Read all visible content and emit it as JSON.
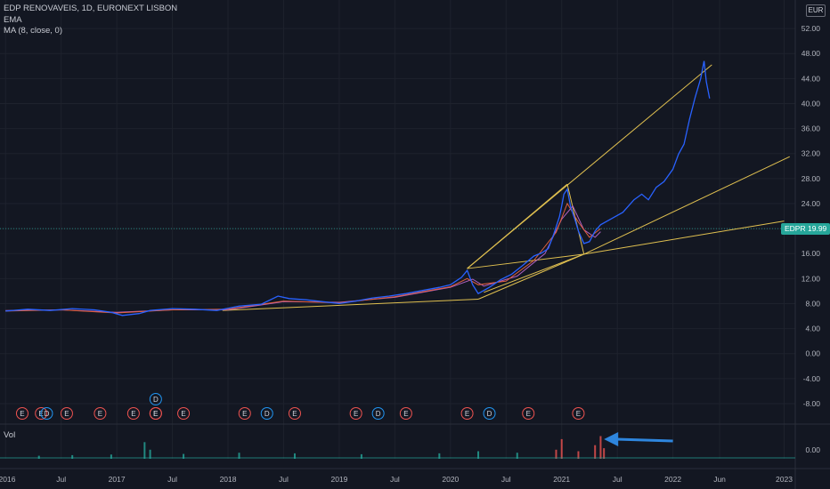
{
  "legend": {
    "symbol_line": "EDP RENOVAVEIS, 1D, EURONEXT LISBON",
    "ema": "EMA",
    "ma": "MA (8, close, 0)"
  },
  "currency": "EUR",
  "price_badge": {
    "symbol": "EDPR",
    "value": "19.99"
  },
  "volume_label": "Vol",
  "colors": {
    "background": "#131722",
    "grid": "#1e222d",
    "price_line": "#2962ff",
    "trendline": "#e0c050",
    "ema": "#e06040",
    "ma": "#b060c0",
    "earnings": "#ef5350",
    "dividend": "#2196f3",
    "arrow": "#2e86de",
    "current_price_line": "#26a69a"
  },
  "chart_data": {
    "type": "line",
    "title": "EDP RENOVAVEIS, 1D, EURONEXT LISBON",
    "y_axis": {
      "ticks": [
        "52.00",
        "48.00",
        "44.00",
        "40.00",
        "36.00",
        "32.00",
        "28.00",
        "24.00",
        "20.00",
        "16.00",
        "12.00",
        "8.00",
        "4.00",
        "0.00",
        "-4.00",
        "-8.00"
      ],
      "min": -10,
      "max": 54
    },
    "x_axis": {
      "ticks": [
        "2016",
        "Jul",
        "2017",
        "Jul",
        "2018",
        "Jul",
        "2019",
        "Jul",
        "2020",
        "Jul",
        "2021",
        "Jul",
        "2022",
        "Jun",
        "2023"
      ],
      "ticks_t": [
        0,
        0.5,
        1,
        1.5,
        2,
        2.5,
        3,
        3.5,
        4,
        4.5,
        5,
        5.5,
        6,
        6.42,
        7
      ],
      "t_unit": "years since 2016",
      "range_t": [
        -0.05,
        7.1
      ]
    },
    "volume_axis": {
      "ticks": [
        "0.00"
      ]
    },
    "current_price": 19.99,
    "price_series": [
      [
        0.0,
        6.8
      ],
      [
        0.2,
        7.1
      ],
      [
        0.4,
        6.9
      ],
      [
        0.6,
        7.2
      ],
      [
        0.8,
        7.0
      ],
      [
        0.95,
        6.6
      ],
      [
        1.05,
        6.1
      ],
      [
        1.2,
        6.4
      ],
      [
        1.3,
        6.9
      ],
      [
        1.5,
        7.2
      ],
      [
        1.7,
        7.1
      ],
      [
        1.9,
        6.9
      ],
      [
        2.1,
        7.6
      ],
      [
        2.3,
        7.9
      ],
      [
        2.45,
        9.2
      ],
      [
        2.55,
        8.8
      ],
      [
        2.7,
        8.6
      ],
      [
        2.85,
        8.3
      ],
      [
        3.0,
        8.0
      ],
      [
        3.15,
        8.4
      ],
      [
        3.3,
        8.9
      ],
      [
        3.45,
        9.2
      ],
      [
        3.6,
        9.6
      ],
      [
        3.75,
        10.1
      ],
      [
        3.9,
        10.6
      ],
      [
        4.0,
        11.0
      ],
      [
        4.1,
        12.2
      ],
      [
        4.15,
        13.3
      ],
      [
        4.2,
        11.0
      ],
      [
        4.25,
        9.6
      ],
      [
        4.35,
        10.6
      ],
      [
        4.45,
        11.8
      ],
      [
        4.55,
        12.7
      ],
      [
        4.65,
        14.1
      ],
      [
        4.75,
        15.6
      ],
      [
        4.82,
        16.1
      ],
      [
        4.88,
        16.8
      ],
      [
        4.93,
        19.2
      ],
      [
        4.98,
        21.9
      ],
      [
        5.0,
        23.6
      ],
      [
        5.02,
        25.5
      ],
      [
        5.05,
        26.3
      ],
      [
        5.08,
        23.5
      ],
      [
        5.12,
        21.4
      ],
      [
        5.15,
        19.6
      ],
      [
        5.2,
        17.6
      ],
      [
        5.25,
        17.9
      ],
      [
        5.3,
        19.6
      ],
      [
        5.35,
        20.6
      ],
      [
        5.45,
        21.6
      ],
      [
        5.55,
        22.6
      ],
      [
        5.65,
        24.6
      ],
      [
        5.72,
        25.5
      ],
      [
        5.78,
        24.6
      ],
      [
        5.85,
        26.6
      ],
      [
        5.92,
        27.5
      ],
      [
        6.0,
        29.5
      ],
      [
        6.05,
        31.9
      ],
      [
        6.1,
        33.5
      ],
      [
        6.15,
        37.5
      ],
      [
        6.2,
        41.0
      ],
      [
        6.25,
        44.0
      ],
      [
        6.28,
        46.8
      ],
      [
        6.3,
        43.5
      ],
      [
        6.33,
        40.8
      ]
    ],
    "ema_series": [
      [
        0.0,
        6.8
      ],
      [
        0.5,
        7.0
      ],
      [
        1.0,
        6.5
      ],
      [
        1.5,
        7.0
      ],
      [
        2.0,
        7.1
      ],
      [
        2.5,
        8.4
      ],
      [
        3.0,
        8.1
      ],
      [
        3.5,
        9.1
      ],
      [
        4.0,
        10.7
      ],
      [
        4.15,
        12.0
      ],
      [
        4.25,
        11.0
      ],
      [
        4.5,
        11.6
      ],
      [
        4.75,
        14.9
      ],
      [
        4.95,
        19.4
      ],
      [
        5.05,
        24.0
      ],
      [
        5.15,
        21.0
      ],
      [
        5.25,
        18.6
      ],
      [
        5.35,
        20.0
      ]
    ],
    "ma_series": [
      [
        0.0,
        6.9
      ],
      [
        0.5,
        7.0
      ],
      [
        1.0,
        6.6
      ],
      [
        1.5,
        7.0
      ],
      [
        2.0,
        7.0
      ],
      [
        2.5,
        8.3
      ],
      [
        3.0,
        8.2
      ],
      [
        3.5,
        9.0
      ],
      [
        4.0,
        10.6
      ],
      [
        4.2,
        11.9
      ],
      [
        4.3,
        10.8
      ],
      [
        4.6,
        12.4
      ],
      [
        4.85,
        16.0
      ],
      [
        5.0,
        21.5
      ],
      [
        5.1,
        23.6
      ],
      [
        5.2,
        19.8
      ],
      [
        5.3,
        18.6
      ],
      [
        5.35,
        19.5
      ]
    ],
    "volume_series": [
      [
        0.3,
        0.1
      ],
      [
        0.6,
        0.12
      ],
      [
        0.95,
        0.14
      ],
      [
        1.25,
        0.55
      ],
      [
        1.3,
        0.3
      ],
      [
        1.6,
        0.16
      ],
      [
        2.1,
        0.2
      ],
      [
        2.6,
        0.18
      ],
      [
        3.2,
        0.15
      ],
      [
        3.9,
        0.18
      ],
      [
        4.25,
        0.25
      ],
      [
        4.6,
        0.2
      ],
      [
        4.95,
        0.3
      ],
      [
        5.0,
        0.65
      ],
      [
        5.15,
        0.25
      ],
      [
        5.3,
        0.45
      ],
      [
        5.35,
        0.75
      ],
      [
        5.38,
        0.35
      ]
    ],
    "trendlines": [
      {
        "from": [
          1.95,
          6.9
        ],
        "to": [
          4.25,
          8.7
        ]
      },
      {
        "from": [
          4.25,
          8.7
        ],
        "to": [
          5.2,
          15.9
        ]
      },
      {
        "from": [
          4.15,
          13.6
        ],
        "to": [
          5.05,
          27.1
        ]
      },
      {
        "from": [
          5.05,
          27.1
        ],
        "to": [
          5.2,
          15.9
        ]
      },
      {
        "from": [
          4.15,
          13.6
        ],
        "to": [
          5.2,
          15.9
        ]
      },
      {
        "from": [
          4.3,
          9.8
        ],
        "to": [
          5.2,
          15.9
        ]
      },
      {
        "from": [
          4.15,
          13.6
        ],
        "to": [
          6.35,
          46.2
        ]
      },
      {
        "from": [
          5.2,
          15.9
        ],
        "to": [
          7.05,
          31.5
        ]
      },
      {
        "from": [
          5.2,
          15.9
        ],
        "to": [
          7.0,
          21.2
        ]
      }
    ],
    "events": [
      {
        "t": 0.15,
        "type": "E"
      },
      {
        "t": 0.32,
        "type": "E"
      },
      {
        "t": 0.37,
        "type": "D"
      },
      {
        "t": 0.55,
        "type": "E"
      },
      {
        "t": 0.85,
        "type": "E"
      },
      {
        "t": 1.15,
        "type": "E"
      },
      {
        "t": 1.35,
        "type": "E"
      },
      {
        "t": 1.35,
        "type": "D",
        "row": 2
      },
      {
        "t": 1.35,
        "type": "E"
      },
      {
        "t": 1.6,
        "type": "E"
      },
      {
        "t": 2.15,
        "type": "E"
      },
      {
        "t": 2.35,
        "type": "D"
      },
      {
        "t": 2.6,
        "type": "E"
      },
      {
        "t": 3.15,
        "type": "E"
      },
      {
        "t": 3.35,
        "type": "D"
      },
      {
        "t": 3.6,
        "type": "E"
      },
      {
        "t": 4.15,
        "type": "E"
      },
      {
        "t": 4.35,
        "type": "D"
      },
      {
        "t": 4.7,
        "type": "E"
      },
      {
        "t": 5.15,
        "type": "E"
      }
    ],
    "annotations": [
      {
        "type": "arrow",
        "from_t": 6.0,
        "to_t": 5.38,
        "pane": "volume"
      }
    ]
  }
}
